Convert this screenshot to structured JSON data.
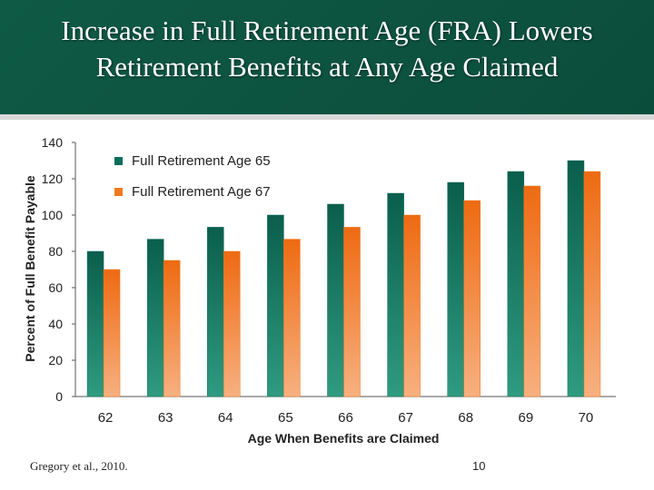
{
  "slide": {
    "title_line1": "Increase in Full Retirement Age (FRA) Lowers",
    "title_line2": "Retirement Benefits at Any Age Claimed",
    "source": "Gregory et al., 2010.",
    "page_number": "10"
  },
  "colors": {
    "header_bg": "#0f5a45",
    "series_fra65": "#0d6e5a",
    "series_fra67": "#f07a1e"
  },
  "chart_data": {
    "type": "bar",
    "xlabel": "Age When Benefits are Claimed",
    "ylabel": "Percent of Full Benefit Payable",
    "ylim": [
      0,
      140
    ],
    "yticks": [
      0,
      20,
      40,
      60,
      80,
      100,
      120,
      140
    ],
    "grid": false,
    "legend": "top-left",
    "categories": [
      "62",
      "63",
      "64",
      "65",
      "66",
      "67",
      "68",
      "69",
      "70"
    ],
    "series": [
      {
        "name": "Full Retirement Age 65",
        "values": [
          80,
          86.7,
          93.3,
          100,
          106,
          112,
          118,
          124,
          130
        ]
      },
      {
        "name": "Full Retirement Age 67",
        "values": [
          70,
          75,
          80,
          86.7,
          93.3,
          100,
          108,
          116,
          124
        ]
      }
    ]
  }
}
